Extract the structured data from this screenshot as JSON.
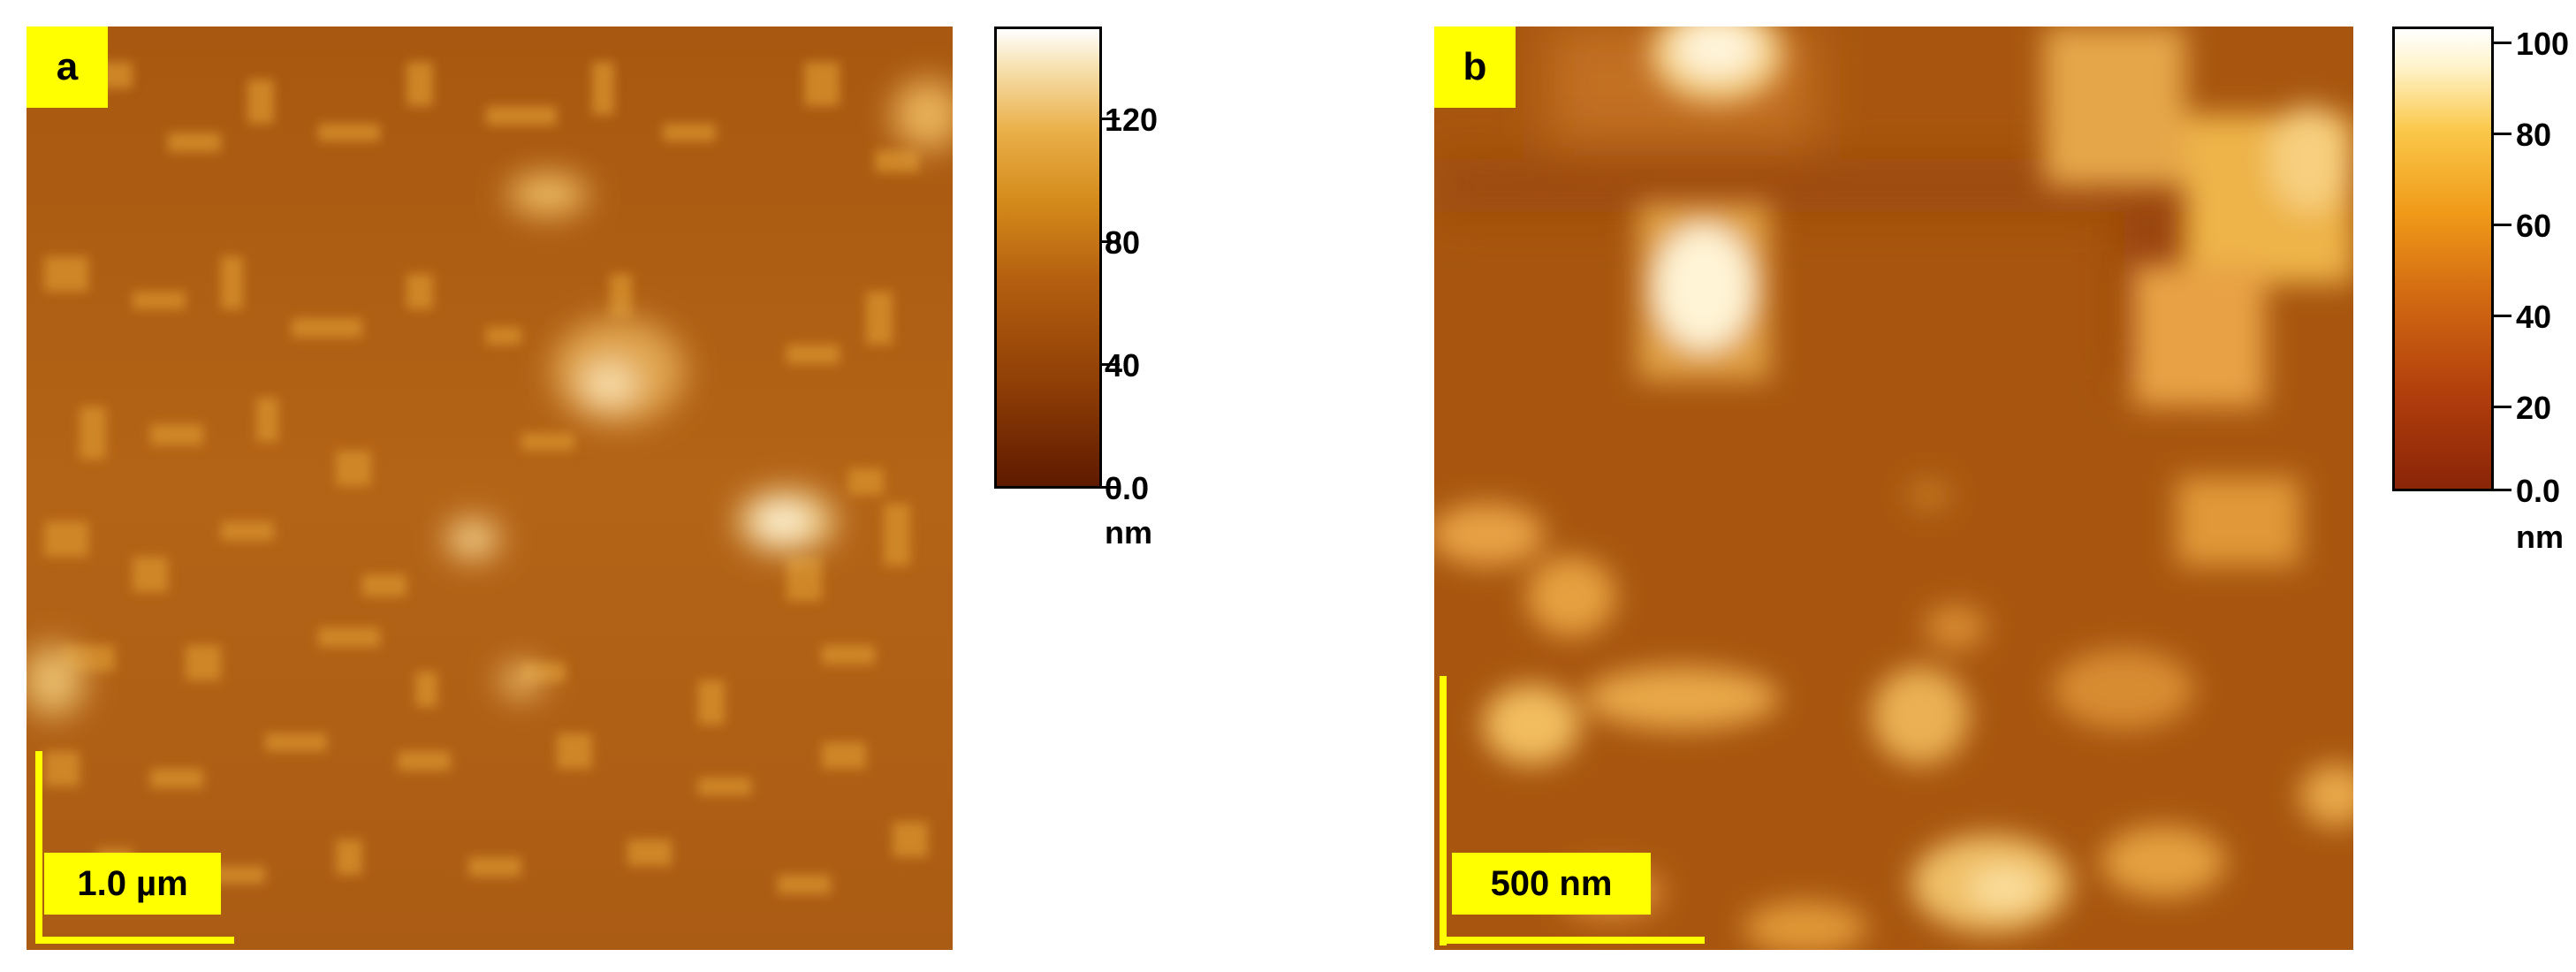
{
  "panels": [
    {
      "label": "a",
      "scale_bar": "1.0 µm",
      "colorbar": {
        "ticks": [
          "120",
          "80",
          "40",
          "0.0"
        ],
        "unit": "nm",
        "range": [
          0,
          150
        ]
      }
    },
    {
      "label": "b",
      "scale_bar": "500 nm",
      "colorbar": {
        "ticks": [
          "100",
          "80",
          "60",
          "40",
          "20",
          "0.0"
        ],
        "unit": "nm",
        "range": [
          0,
          100
        ]
      }
    }
  ],
  "colors": {
    "label_background": "#ffff00",
    "surface_a": "#b06418",
    "surface_b": "#a95a12"
  }
}
